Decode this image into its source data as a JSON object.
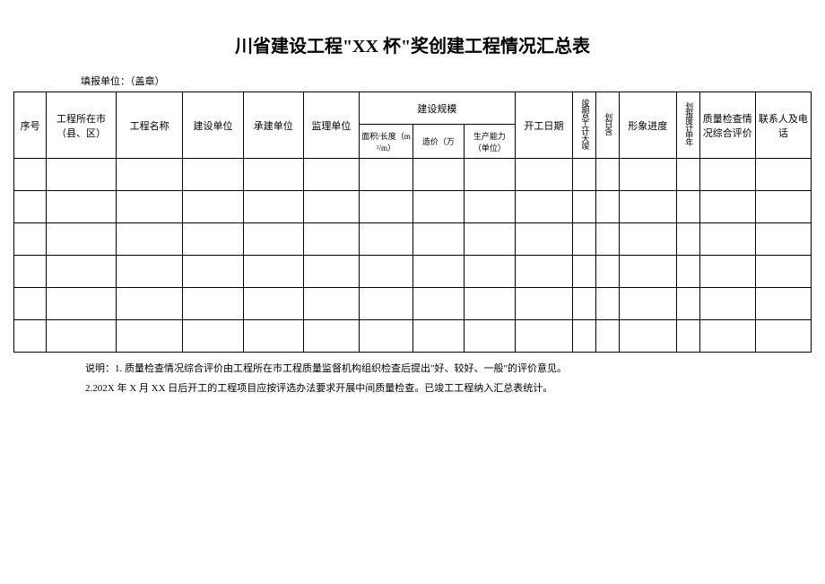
{
  "title": "川省建设工程\"XX 杯\"奖创建工程情况汇总表",
  "subtitle": "填报单位：（盖章）",
  "headers": {
    "seq": "序号",
    "city": "工程所在市（县、区）",
    "name": "工程名称",
    "build_unit": "建设单位",
    "contract_unit": "承建单位",
    "supervise_unit": "监理单位",
    "scale": "建设规模",
    "area": "面积/长度（m²/m）",
    "cost": "造价（万",
    "capacity": "生产能力（单位）",
    "start_date": "开工日期",
    "duration": "竣期总工计大竣",
    "complete": "划日含",
    "progress": "形象进度",
    "plan_year": "划报度计申年",
    "quality": "质量检查情况综合评价",
    "contact": "联系人及电话"
  },
  "notes": {
    "line1": "说明：1. 质量检查情况综合评价由工程所在市工程质量监督机构组织检查后提出\"好、较好、一般\"的评价意见。",
    "line2": "2.202X 年 X 月 XX 日后开工的工程项目应按评选办法要求开展中间质量检查。已竣工工程纳入汇总表统计。"
  },
  "num_data_rows": 6
}
